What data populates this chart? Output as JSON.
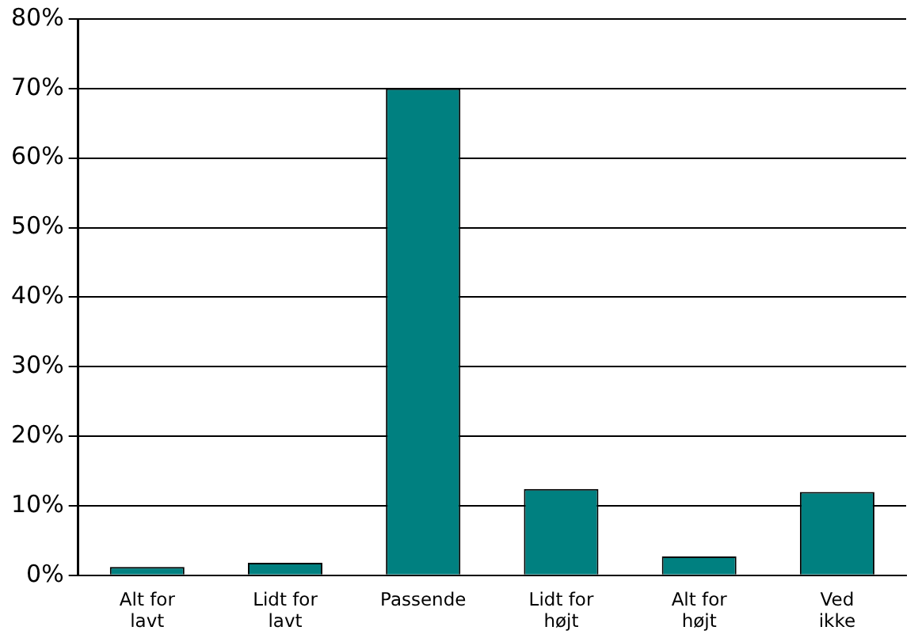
{
  "chart_data": {
    "type": "bar",
    "categories": [
      "Alt for lavt",
      "Lidt for lavt",
      "Passende",
      "Lidt for højt",
      "Alt for højt",
      "Ved ikke"
    ],
    "values": [
      1.2,
      1.8,
      70,
      12.4,
      2.7,
      12
    ],
    "color": "#008080",
    "ylim": [
      0,
      80
    ],
    "yticks": [
      {
        "value": 0,
        "label": "0%"
      },
      {
        "value": 10,
        "label": "10%"
      },
      {
        "value": 20,
        "label": "20%"
      },
      {
        "value": 30,
        "label": "30%"
      },
      {
        "value": 40,
        "label": "40%"
      },
      {
        "value": 50,
        "label": "50%"
      },
      {
        "value": 60,
        "label": "60%"
      },
      {
        "value": 70,
        "label": "70%"
      },
      {
        "value": 80,
        "label": "80%"
      }
    ],
    "grid": "y",
    "legend": false
  }
}
